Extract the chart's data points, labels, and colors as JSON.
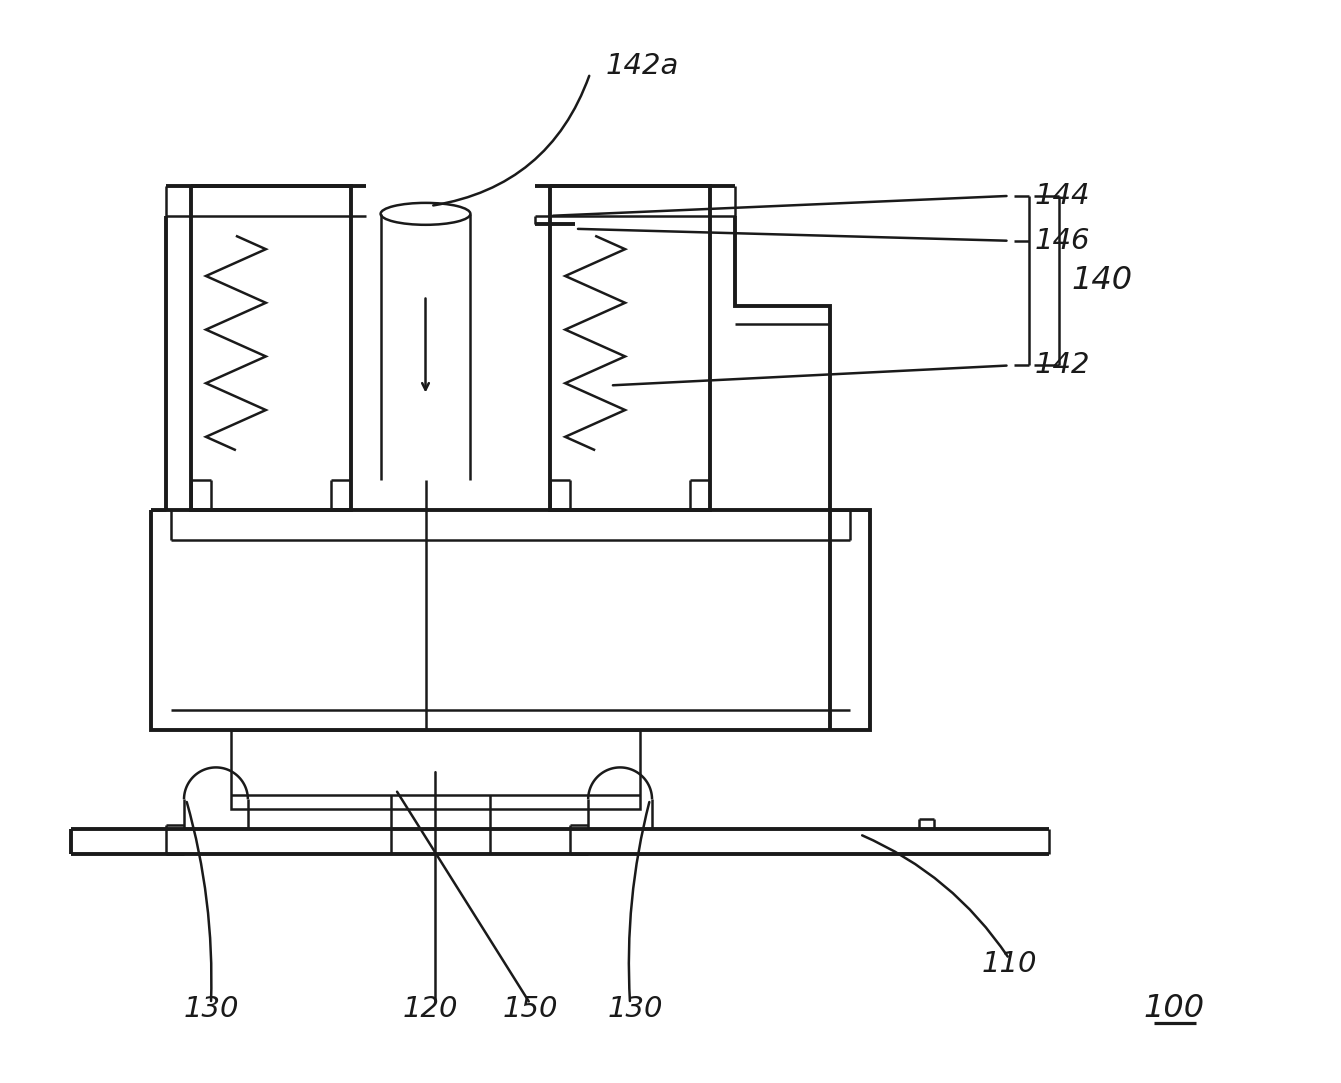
{
  "bg_color": "#ffffff",
  "line_color": "#1a1a1a",
  "lw": 1.8,
  "tlw": 2.8,
  "fig_width": 13.41,
  "fig_height": 10.83
}
